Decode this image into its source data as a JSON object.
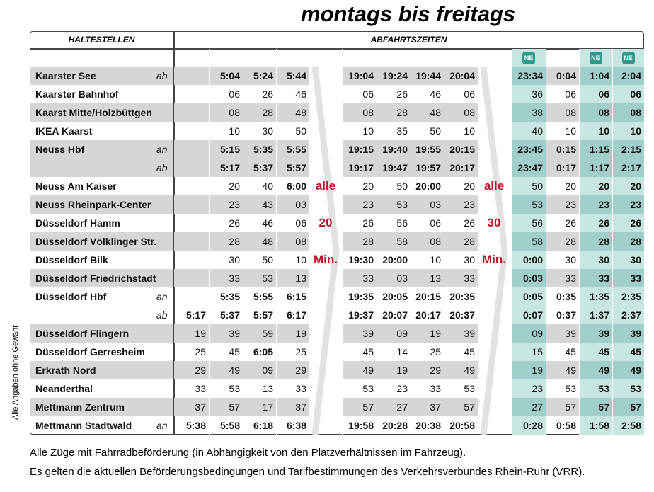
{
  "header": {
    "title": "montags bis freitags",
    "stops_heading": "HALTESTELLEN",
    "departures_heading": "ABFAHRTSZEITEN",
    "ne_label": "NE"
  },
  "side_note": "Alle Angaben ohne Gewähr",
  "intervals": [
    {
      "every": "alle",
      "minutes": "20",
      "unit": "Min."
    },
    {
      "every": "alle",
      "minutes": "30",
      "unit": "Min."
    }
  ],
  "rows": [
    {
      "station": "Kaarster See",
      "mark": "ab",
      "times": [
        null,
        "5:04",
        "5:24",
        "5:44",
        "19:04",
        "19:24",
        "19:44",
        "20:04",
        "23:34",
        "0:04",
        "1:04",
        "2:04"
      ]
    },
    {
      "station": "Kaarster Bahnhof",
      "times": [
        null,
        "06",
        "26",
        "46",
        "06",
        "26",
        "46",
        "06",
        "36",
        "06",
        "06",
        "06"
      ]
    },
    {
      "station": "Kaarst Mitte/Holzbüttgen",
      "times": [
        null,
        "08",
        "28",
        "48",
        "08",
        "28",
        "48",
        "08",
        "38",
        "08",
        "08",
        "08"
      ]
    },
    {
      "station": "IKEA Kaarst",
      "times": [
        null,
        "10",
        "30",
        "50",
        "10",
        "35",
        "50",
        "10",
        "40",
        "10",
        "10",
        "10"
      ]
    },
    {
      "station": "Neuss Hbf",
      "mark": "an",
      "times": [
        null,
        "5:15",
        "5:35",
        "5:55",
        "19:15",
        "19:40",
        "19:55",
        "20:15",
        "23:45",
        "0:15",
        "1:15",
        "2:15"
      ]
    },
    {
      "mark": "ab",
      "times": [
        null,
        "5:17",
        "5:37",
        "5:57",
        "19:17",
        "19:47",
        "19:57",
        "20:17",
        "23:47",
        "0:17",
        "1:17",
        "2:17"
      ]
    },
    {
      "station": "Neuss Am Kaiser",
      "times": [
        null,
        "20",
        "40",
        "6:00",
        "20",
        "50",
        "20:00",
        "20",
        "50",
        "20",
        "20",
        "20"
      ]
    },
    {
      "station": "Neuss Rheinpark-Center",
      "times": [
        null,
        "23",
        "43",
        "03",
        "23",
        "53",
        "03",
        "23",
        "53",
        "23",
        "23",
        "23"
      ]
    },
    {
      "station": "Düsseldorf Hamm",
      "times": [
        null,
        "26",
        "46",
        "06",
        "26",
        "56",
        "06",
        "26",
        "56",
        "26",
        "26",
        "26"
      ]
    },
    {
      "station": "Düsseldorf Völklinger Str.",
      "times": [
        null,
        "28",
        "48",
        "08",
        "28",
        "58",
        "08",
        "28",
        "58",
        "28",
        "28",
        "28"
      ]
    },
    {
      "station": "Düsseldorf Bilk",
      "times": [
        null,
        "30",
        "50",
        "10",
        "19:30",
        "20:00",
        "10",
        "30",
        "0:00",
        "30",
        "30",
        "30"
      ]
    },
    {
      "station": "Düsseldorf Friedrichstadt",
      "times": [
        null,
        "33",
        "53",
        "13",
        "33",
        "03",
        "13",
        "33",
        "0:03",
        "33",
        "33",
        "33"
      ]
    },
    {
      "station": "Düsseldorf Hbf",
      "mark": "an",
      "times": [
        null,
        "5:35",
        "5:55",
        "6:15",
        "19:35",
        "20:05",
        "20:15",
        "20:35",
        "0:05",
        "0:35",
        "1:35",
        "2:35"
      ]
    },
    {
      "mark": "ab",
      "times": [
        "5:17",
        "5:37",
        "5:57",
        "6:17",
        "19:37",
        "20:07",
        "20:17",
        "20:37",
        "0:07",
        "0:37",
        "1:37",
        "2:37"
      ]
    },
    {
      "station": "Düsseldorf Flingern",
      "times": [
        "19",
        "39",
        "59",
        "19",
        "39",
        "09",
        "19",
        "39",
        "09",
        "39",
        "39",
        "39"
      ]
    },
    {
      "station": "Düsseldorf Gerresheim",
      "times": [
        "25",
        "45",
        "6:05",
        "25",
        "45",
        "14",
        "25",
        "45",
        "15",
        "45",
        "45",
        "45"
      ]
    },
    {
      "station": "Erkrath Nord",
      "times": [
        "29",
        "49",
        "09",
        "29",
        "49",
        "19",
        "29",
        "49",
        "19",
        "49",
        "49",
        "49"
      ]
    },
    {
      "station": "Neanderthal",
      "times": [
        "33",
        "53",
        "13",
        "33",
        "53",
        "23",
        "33",
        "53",
        "23",
        "53",
        "53",
        "53"
      ]
    },
    {
      "station": "Mettmann Zentrum",
      "times": [
        "37",
        "57",
        "17",
        "37",
        "57",
        "27",
        "37",
        "57",
        "27",
        "57",
        "57",
        "57"
      ]
    },
    {
      "station": "Mettmann Stadtwald",
      "mark": "an",
      "times": [
        "5:38",
        "5:58",
        "6:18",
        "6:38",
        "19:58",
        "20:28",
        "20:38",
        "20:58",
        "0:28",
        "0:58",
        "1:58",
        "2:58"
      ]
    }
  ],
  "footer": [
    "Alle Züge mit Fahrradbeförderung (in Abhängigkeit von den Platzverhältnissen im Fahrzeug).",
    "Es gelten die aktuellen Beförderungsbedingungen und Tarifbestimmungen des Verkehrsverbundes Rhein-Ruhr (VRR)."
  ]
}
